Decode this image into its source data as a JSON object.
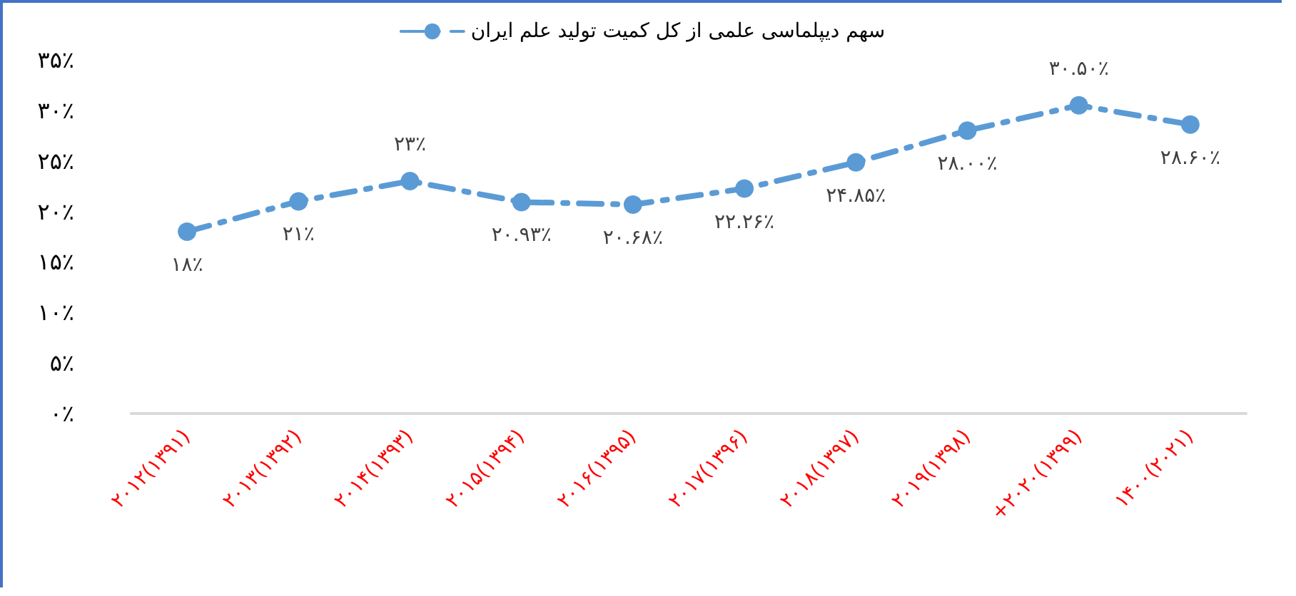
{
  "chart_data": {
    "type": "line",
    "categories": [
      "۲۰۱۲(۱۳۹۱)",
      "۲۰۱۳(۱۳۹۲)",
      "۲۰۱۴(۱۳۹۳)",
      "۲۰۱۵(۱۳۹۴)",
      "۲۰۱۶(۱۳۹۵)",
      "۲۰۱۷(۱۳۹۶)",
      "۲۰۱۸(۱۳۹۷)",
      "۲۰۱۹(۱۳۹۸)",
      "+۲۰۲۰(۱۳۹۹)",
      "۱۴۰۰(۲۰۲۱)"
    ],
    "series": [
      {
        "name": "سهم دیپلماسی علمی از کل کمیت تولید علم ایران",
        "color": "#5b9bd5",
        "values": [
          18,
          21,
          23,
          20.93,
          20.68,
          22.26,
          24.85,
          28.0,
          30.5,
          28.6
        ],
        "value_labels": [
          "۱۸٪",
          "۲۱٪",
          "۲۳٪",
          "۲۰.۹۳٪",
          "۲۰.۶۸٪",
          "۲۲.۲۶٪",
          "۲۴.۸۵٪",
          "۲۸.۰۰٪",
          "۳۰.۵۰٪",
          "۲۸.۶۰٪"
        ]
      }
    ],
    "ylim": [
      0,
      35
    ],
    "yticks": [
      {
        "value": 0,
        "label": "۰٪"
      },
      {
        "value": 5,
        "label": "۵٪"
      },
      {
        "value": 10,
        "label": "۱۰٪"
      },
      {
        "value": 15,
        "label": "۱۵٪"
      },
      {
        "value": 20,
        "label": "۲۰٪"
      },
      {
        "value": 25,
        "label": "۲۵٪"
      },
      {
        "value": 30,
        "label": "۳۰٪"
      },
      {
        "value": 35,
        "label": "۳۵٪"
      }
    ],
    "grid": false,
    "legend": "top",
    "marker": "circle",
    "line_style": "dashed"
  }
}
